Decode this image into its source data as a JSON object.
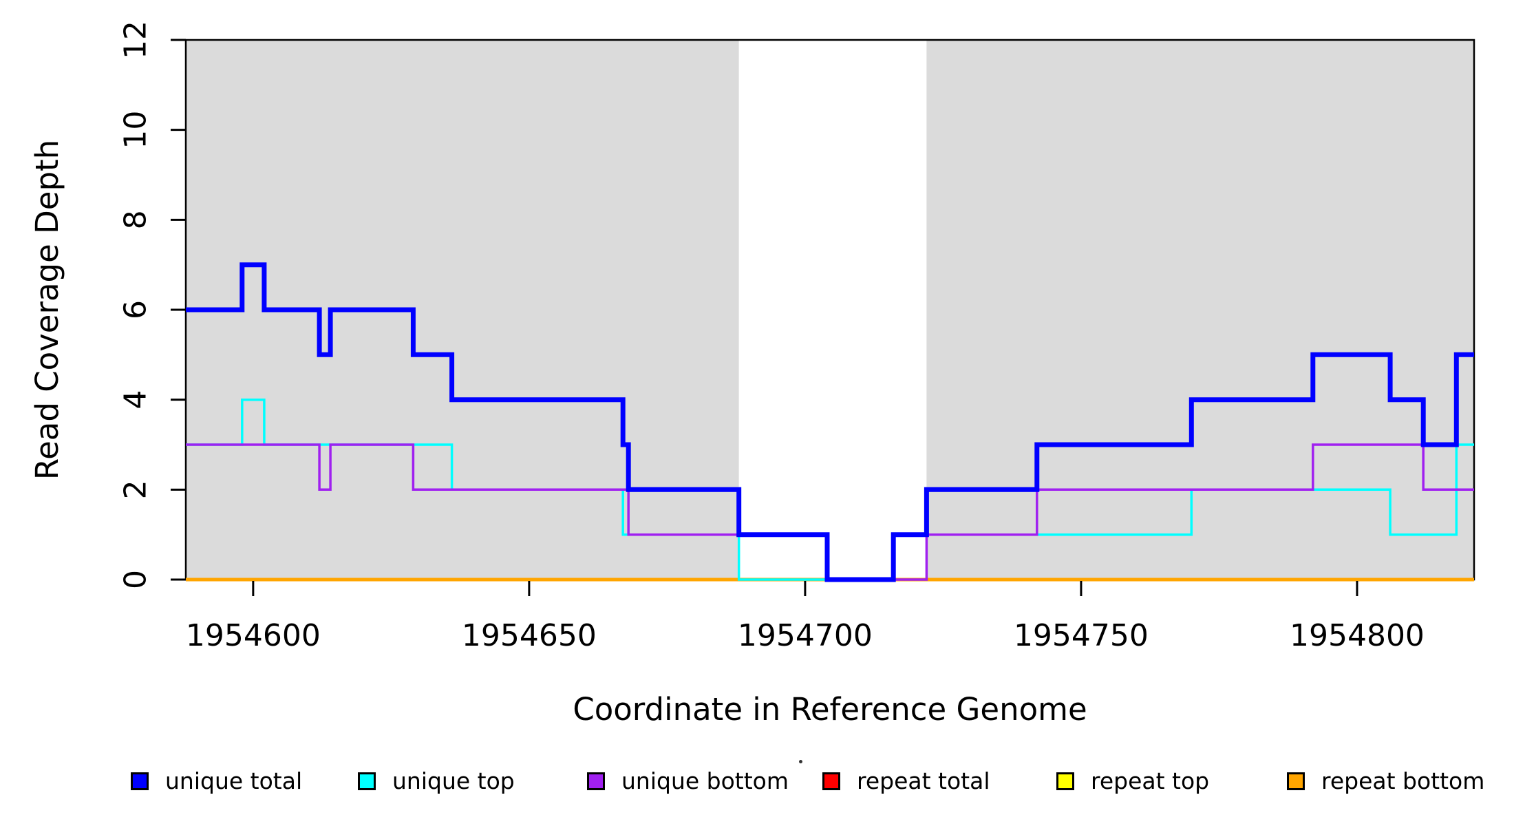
{
  "chart_data": {
    "type": "line",
    "subtype": "step",
    "title": "",
    "xlabel": "Coordinate in Reference Genome",
    "ylabel": "Read Coverage Depth",
    "xlim": [
      1954587.8,
      1954821.2
    ],
    "ylim": [
      0,
      12
    ],
    "xticks": [
      1954600,
      1954650,
      1954700,
      1954750,
      1954800
    ],
    "yticks": [
      0,
      2,
      4,
      6,
      8,
      10,
      12
    ],
    "grid": false,
    "axis_color": "#000000",
    "background_shading": {
      "color": "#DBDBDB",
      "regions": [
        [
          1954587.8,
          1954688
        ],
        [
          1954722,
          1954821.2
        ]
      ]
    },
    "series": [
      {
        "name": "repeat total",
        "color": "#FF0000",
        "line_width": 3,
        "steps": [
          [
            1954587.8,
            0
          ]
        ]
      },
      {
        "name": "repeat top",
        "color": "#FFFF00",
        "line_width": 3,
        "steps": [
          [
            1954587.8,
            0
          ]
        ]
      },
      {
        "name": "repeat bottom",
        "color": "#FFA500",
        "line_width": 5,
        "steps": [
          [
            1954587.8,
            0
          ]
        ]
      },
      {
        "name": "unique top",
        "color": "#00FFFF",
        "line_width": 3.5,
        "steps": [
          [
            1954587.8,
            3
          ],
          [
            1954598,
            4
          ],
          [
            1954602,
            3
          ],
          [
            1954636,
            2
          ],
          [
            1954667,
            1
          ],
          [
            1954688,
            0
          ],
          [
            1954716,
            1
          ],
          [
            1954770,
            2
          ],
          [
            1954806,
            1
          ],
          [
            1954818,
            3
          ]
        ]
      },
      {
        "name": "unique bottom",
        "color": "#A020F0",
        "line_width": 3.5,
        "steps": [
          [
            1954587.8,
            3
          ],
          [
            1954612,
            2
          ],
          [
            1954614,
            3
          ],
          [
            1954629,
            2
          ],
          [
            1954668,
            1
          ],
          [
            1954704,
            0
          ],
          [
            1954722,
            1
          ],
          [
            1954742,
            2
          ],
          [
            1954792,
            3
          ],
          [
            1954812,
            2
          ]
        ]
      },
      {
        "name": "unique total",
        "color": "#0000FF",
        "line_width": 7,
        "steps": [
          [
            1954587.8,
            6
          ],
          [
            1954598,
            7
          ],
          [
            1954602,
            6
          ],
          [
            1954612,
            5
          ],
          [
            1954614,
            6
          ],
          [
            1954629,
            5
          ],
          [
            1954636,
            4
          ],
          [
            1954667,
            3
          ],
          [
            1954668,
            2
          ],
          [
            1954688,
            1
          ],
          [
            1954704,
            0
          ],
          [
            1954716,
            1
          ],
          [
            1954722,
            2
          ],
          [
            1954742,
            3
          ],
          [
            1954770,
            4
          ],
          [
            1954792,
            5
          ],
          [
            1954806,
            4
          ],
          [
            1954812,
            3
          ],
          [
            1954818,
            5
          ]
        ]
      }
    ],
    "legend": {
      "position": "bottom",
      "entries": [
        {
          "label": "unique total",
          "color": "#0000FF"
        },
        {
          "label": "unique top",
          "color": "#00FFFF"
        },
        {
          "label": "unique bottom",
          "color": "#A020F0"
        },
        {
          "label": "repeat total",
          "color": "#FF0000"
        },
        {
          "label": "repeat top",
          "color": "#FFFF00"
        },
        {
          "label": "repeat bottom",
          "color": "#FFA500"
        }
      ]
    }
  }
}
